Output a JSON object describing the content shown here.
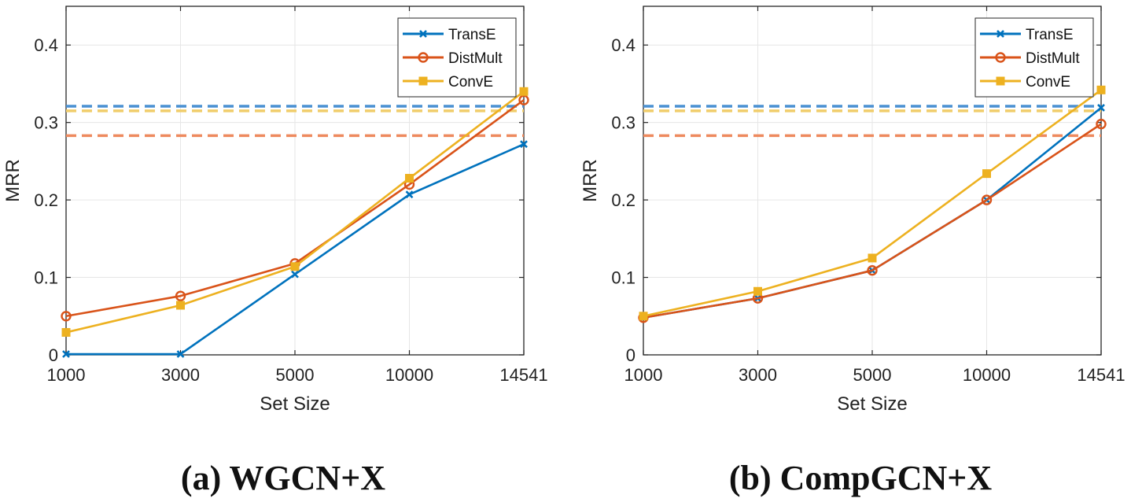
{
  "colors": {
    "TransE": "#0072BD",
    "DistMult": "#D95319",
    "ConvE": "#EDB120",
    "TransE_baseline": "#4A90D2",
    "DistMult_baseline": "#EE8A5E",
    "ConvE_baseline": "#F1CD6B",
    "grid": "#e6e6e6",
    "axis": "#262626"
  },
  "chart_data": [
    {
      "type": "line",
      "caption": "(a) WGCN+X",
      "xlabel": "Set Size",
      "ylabel": "MRR",
      "categories": [
        "1000",
        "3000",
        "5000",
        "10000",
        "14541"
      ],
      "yticks": [
        "0",
        "0.1",
        "0.2",
        "0.3",
        "0.4"
      ],
      "ylim": [
        0,
        0.45
      ],
      "grid": true,
      "legend_position": "top-right",
      "series": [
        {
          "name": "TransE",
          "marker": "x",
          "values": [
            0.001,
            0.001,
            0.104,
            0.207,
            0.272
          ]
        },
        {
          "name": "DistMult",
          "marker": "o",
          "values": [
            0.05,
            0.076,
            0.118,
            0.22,
            0.329
          ]
        },
        {
          "name": "ConvE",
          "marker": "s",
          "values": [
            0.029,
            0.064,
            0.114,
            0.228,
            0.34
          ]
        }
      ],
      "baselines": [
        {
          "series": "TransE",
          "value": 0.321
        },
        {
          "series": "ConvE",
          "value": 0.315
        },
        {
          "series": "DistMult",
          "value": 0.283
        }
      ]
    },
    {
      "type": "line",
      "caption": "(b) CompGCN+X",
      "xlabel": "Set Size",
      "ylabel": "MRR",
      "categories": [
        "1000",
        "3000",
        "5000",
        "10000",
        "14541"
      ],
      "yticks": [
        "0",
        "0.1",
        "0.2",
        "0.3",
        "0.4"
      ],
      "ylim": [
        0,
        0.45
      ],
      "grid": true,
      "legend_position": "top-right",
      "series": [
        {
          "name": "TransE",
          "marker": "x",
          "values": [
            0.048,
            0.073,
            0.109,
            0.2,
            0.319
          ]
        },
        {
          "name": "DistMult",
          "marker": "o",
          "values": [
            0.048,
            0.073,
            0.109,
            0.2,
            0.298
          ]
        },
        {
          "name": "ConvE",
          "marker": "s",
          "values": [
            0.05,
            0.082,
            0.125,
            0.234,
            0.342
          ]
        }
      ],
      "baselines": [
        {
          "series": "TransE",
          "value": 0.321
        },
        {
          "series": "ConvE",
          "value": 0.315
        },
        {
          "series": "DistMult",
          "value": 0.283
        }
      ]
    }
  ]
}
